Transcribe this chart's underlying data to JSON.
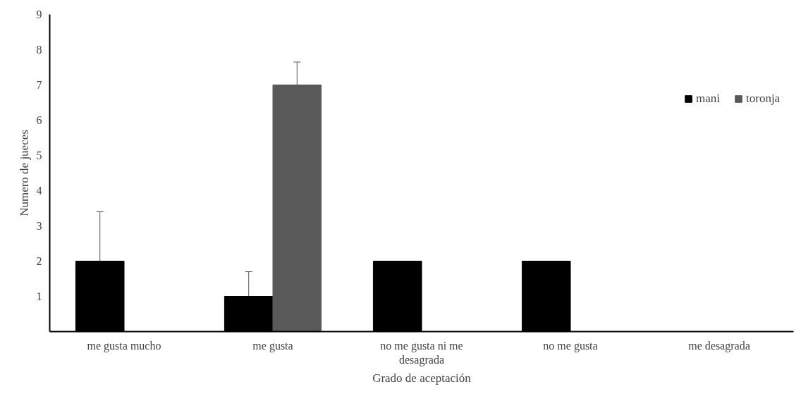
{
  "chart_data": {
    "type": "bar",
    "xlabel": "Grado de aceptación",
    "ylabel": "Numero de jueces",
    "categories": [
      "me gusta mucho",
      "me gusta",
      "no me gusta ni me desagrada",
      "no me gusta",
      "me desagrada"
    ],
    "series": [
      {
        "name": "mani",
        "color": "#000000",
        "values": [
          2,
          1,
          2,
          2,
          null
        ],
        "errors": [
          1.4,
          0.7,
          0,
          0,
          null
        ]
      },
      {
        "name": "toronja",
        "color": "#595959",
        "values": [
          null,
          7,
          null,
          null,
          null
        ],
        "errors": [
          null,
          0.65,
          null,
          null,
          null
        ]
      }
    ],
    "ylim": [
      0,
      9
    ],
    "yticks": [
      1,
      2,
      3,
      4,
      5,
      6,
      7,
      8,
      9
    ],
    "grid": false,
    "legend": "right"
  }
}
